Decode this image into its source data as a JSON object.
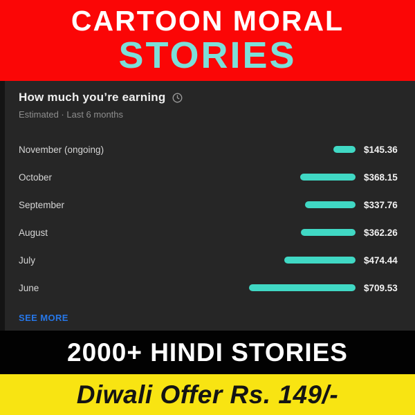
{
  "banner_top": {
    "line1": "CARTOON MORAL",
    "line2": "STORIES",
    "bg_color": "#fb0606",
    "line1_color": "#ffffff",
    "line2_color": "#7cdfd9"
  },
  "earnings_panel": {
    "title": "How much you’re earning",
    "subtitle": "Estimated · Last 6 months",
    "see_more_label": "SEE MORE",
    "bg_color": "#262626",
    "bar_color": "#40d8c4",
    "see_more_color": "#2677e8",
    "clock_icon": "clock-icon"
  },
  "chart_data": {
    "type": "bar",
    "orientation": "horizontal",
    "title": "How much you’re earning",
    "subtitle": "Estimated · Last 6 months",
    "categories": [
      "November (ongoing)",
      "October",
      "September",
      "August",
      "July",
      "June"
    ],
    "values": [
      145.36,
      368.15,
      337.76,
      362.26,
      474.44,
      709.53
    ],
    "value_labels": [
      "$145.36",
      "$368.15",
      "$337.76",
      "$362.26",
      "$474.44",
      "$709.53"
    ],
    "unit": "USD",
    "max_value": 709.53,
    "bar_color": "#40d8c4",
    "legend": "none",
    "grid": false
  },
  "banner_hindi": {
    "label": "2000+ HINDI STORIES",
    "bg_color": "#020202",
    "text_color": "#ffffff"
  },
  "banner_offer": {
    "label": "Diwali Offer Rs. 149/-",
    "bg_color": "#f8e412",
    "text_color": "#141414"
  }
}
